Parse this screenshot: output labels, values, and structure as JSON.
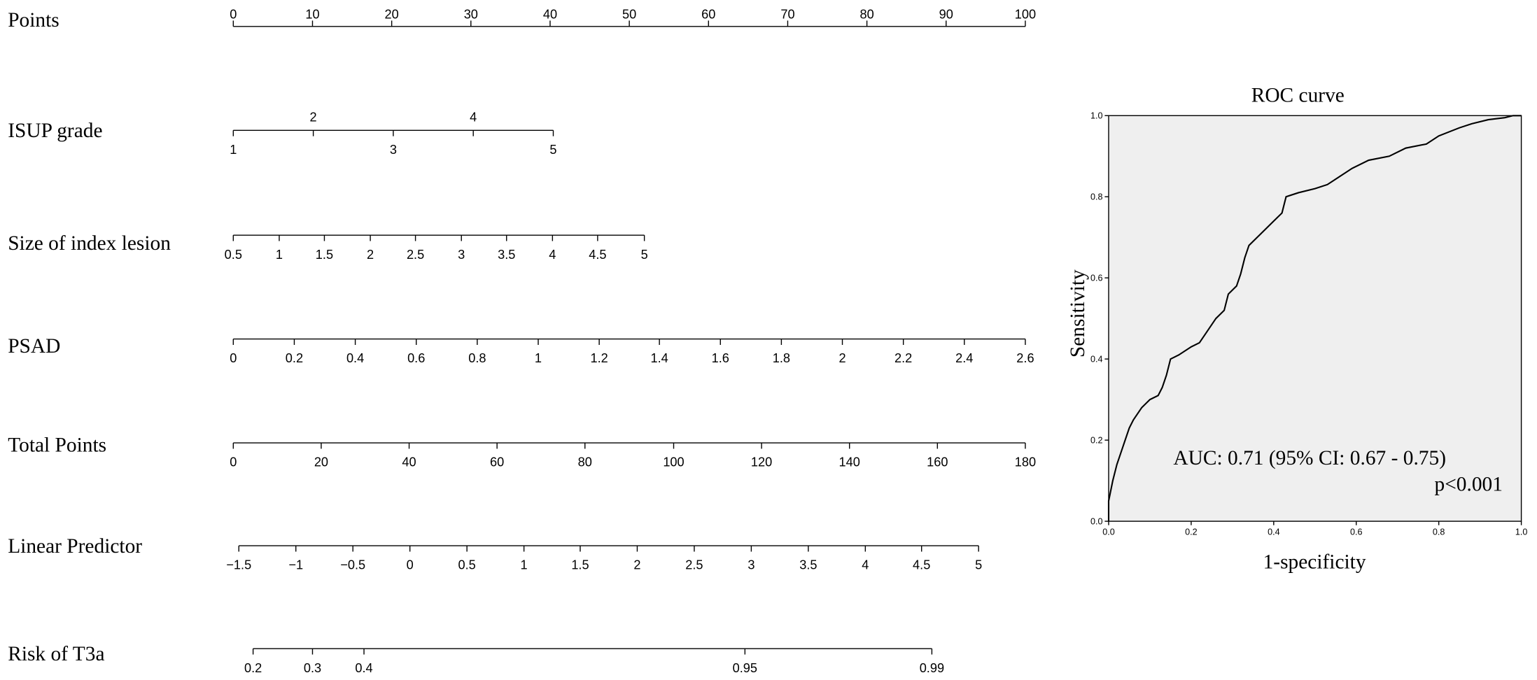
{
  "chart_data": [
    {
      "type": "nomogram",
      "scales": [
        {
          "name": "Points",
          "ticks": [
            0,
            10,
            20,
            30,
            40,
            50,
            60,
            70,
            80,
            90,
            100
          ],
          "tick_points": [
            0,
            10,
            20,
            30,
            40,
            50,
            60,
            70,
            80,
            90,
            100
          ]
        },
        {
          "name": "ISUP grade",
          "ticks": [
            1,
            2,
            3,
            4,
            5
          ],
          "tick_points": [
            0,
            10.1,
            20.2,
            30.3,
            40.4
          ]
        },
        {
          "name": "Size of index lesion",
          "ticks": [
            0.5,
            1,
            1.5,
            2,
            2.5,
            3,
            3.5,
            4,
            4.5,
            5
          ],
          "tick_points": [
            0,
            5.8,
            11.5,
            17.3,
            23.0,
            28.8,
            34.5,
            40.3,
            46.0,
            51.9
          ]
        },
        {
          "name": "PSAD",
          "ticks": [
            0,
            0.2,
            0.4,
            0.6,
            0.8,
            1,
            1.2,
            1.4,
            1.6,
            1.8,
            2,
            2.2,
            2.4,
            2.6
          ],
          "tick_points": [
            0,
            7.7,
            15.4,
            23.1,
            30.8,
            38.5,
            46.2,
            53.8,
            61.5,
            69.2,
            76.9,
            84.6,
            92.3,
            100
          ]
        },
        {
          "name": "Total Points",
          "ticks": [
            0,
            20,
            40,
            60,
            80,
            100,
            120,
            140,
            160,
            180
          ],
          "tick_points": [
            0,
            11.1,
            22.2,
            33.3,
            44.4,
            55.6,
            66.7,
            77.8,
            88.9,
            100
          ]
        },
        {
          "name": "Linear Predictor",
          "ticks": [
            {
              "value": -1.5,
              "label": "−1.5"
            },
            {
              "value": -1,
              "label": "−1"
            },
            {
              "value": -0.5,
              "label": "−0.5"
            },
            0,
            0.5,
            1,
            1.5,
            2,
            2.5,
            3,
            3.5,
            4,
            4.5,
            5
          ],
          "tick_points": [
            0.7,
            7.9,
            15.1,
            22.3,
            29.5,
            36.7,
            43.8,
            51.0,
            58.2,
            65.4,
            72.6,
            79.8,
            86.9,
            94.1
          ]
        },
        {
          "name": "Risk of T3a",
          "ticks": [
            0.2,
            0.3,
            0.4,
            0.95,
            0.99
          ],
          "tick_points": [
            2.5,
            10.0,
            16.5,
            64.6,
            88.2
          ]
        }
      ]
    },
    {
      "type": "line",
      "title": "ROC curve",
      "x_label": "1-specificity",
      "y_label": "Sensitivity",
      "xlim": [
        0,
        1
      ],
      "ylim": [
        0,
        1
      ],
      "xticks": [
        {
          "value": 0,
          "label": "0.0"
        },
        0.2,
        0.4,
        0.6,
        0.8,
        {
          "value": 1,
          "label": "1.0"
        }
      ],
      "yticks": [
        {
          "value": 0,
          "label": "0.0"
        },
        0.2,
        0.4,
        0.6,
        0.8,
        {
          "value": 1,
          "label": "1.0"
        }
      ],
      "background": "#efefef",
      "color": "#000000",
      "annotations": [
        "AUC: 0.71 (95% CI: 0.67 - 0.75)",
        "p<0.001"
      ],
      "series": [
        {
          "x": [
            0,
            0,
            0.01,
            0.02,
            0.03,
            0.04,
            0.05,
            0.06,
            0.08,
            0.1,
            0.12,
            0.13,
            0.14,
            0.15,
            0.17,
            0.2,
            0.22,
            0.24,
            0.26,
            0.28,
            0.29,
            0.31,
            0.32,
            0.33,
            0.34,
            0.36,
            0.38,
            0.4,
            0.42,
            0.43,
            0.46,
            0.5,
            0.53,
            0.56,
            0.59,
            0.63,
            0.68,
            0.72,
            0.77,
            0.8,
            0.85,
            0.88,
            0.92,
            0.96,
            0.98,
            1
          ],
          "values": [
            0,
            0.05,
            0.1,
            0.14,
            0.17,
            0.2,
            0.23,
            0.25,
            0.28,
            0.3,
            0.31,
            0.33,
            0.36,
            0.4,
            0.41,
            0.43,
            0.44,
            0.47,
            0.5,
            0.52,
            0.56,
            0.58,
            0.61,
            0.65,
            0.68,
            0.7,
            0.72,
            0.74,
            0.76,
            0.8,
            0.81,
            0.82,
            0.83,
            0.85,
            0.87,
            0.89,
            0.9,
            0.92,
            0.93,
            0.95,
            0.97,
            0.98,
            0.99,
            0.995,
            1,
            1
          ]
        }
      ]
    }
  ]
}
